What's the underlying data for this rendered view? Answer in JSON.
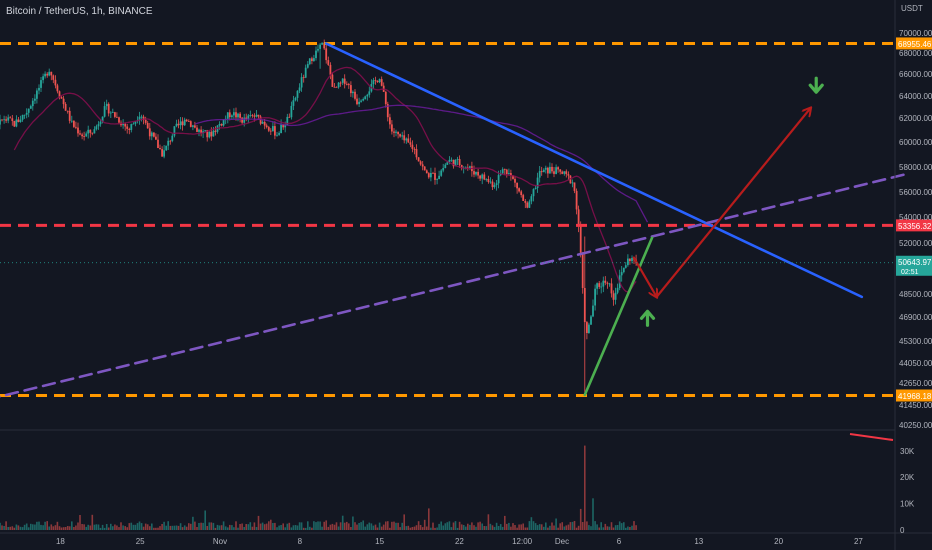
{
  "header": {
    "symbol_title": "Bitcoin / TetherUS, 1h, BINANCE",
    "currency": "USDT"
  },
  "chart_data": {
    "type": "candlestick",
    "symbol": "Bitcoin / TetherUS",
    "interval": "1h",
    "exchange": "BINANCE",
    "currency": "USDT",
    "y_range": [
      39500,
      72000
    ],
    "y_ticks": [
      70000,
      68000,
      66000,
      64000,
      62000,
      60000,
      58000,
      56000,
      54000,
      52000,
      48500,
      46900,
      45300,
      44050,
      42650,
      41450,
      40250
    ],
    "x_tick_labels": [
      "18",
      "25",
      "Nov",
      "8",
      "15",
      "22",
      "12:00",
      "Dec",
      "6",
      "13",
      "20",
      "27"
    ],
    "x_tick_positions_days": [
      -14,
      -7,
      0,
      7,
      14,
      21,
      26.5,
      30,
      35,
      42,
      49,
      56
    ],
    "price_path": [
      [
        -22,
        54500
      ],
      [
        -21,
        57500
      ],
      [
        -20,
        60500
      ],
      [
        -19,
        62000
      ],
      [
        -18,
        61500
      ],
      [
        -17,
        62500
      ],
      [
        -16,
        64500
      ],
      [
        -15,
        66500
      ],
      [
        -14,
        64000
      ],
      [
        -13,
        61500
      ],
      [
        -12,
        60500
      ],
      [
        -11,
        61000
      ],
      [
        -10,
        63000
      ],
      [
        -9,
        62000
      ],
      [
        -8,
        61000
      ],
      [
        -7,
        62500
      ],
      [
        -6,
        60500
      ],
      [
        -5,
        59000
      ],
      [
        -4,
        61000
      ],
      [
        -3,
        62000
      ],
      [
        -2,
        61000
      ],
      [
        -1,
        60500
      ],
      [
        0,
        61500
      ],
      [
        1,
        62500
      ],
      [
        2,
        61800
      ],
      [
        3,
        62200
      ],
      [
        4,
        61500
      ],
      [
        5,
        60700
      ],
      [
        6,
        62000
      ],
      [
        7,
        65000
      ],
      [
        8,
        67500
      ],
      [
        9,
        68900
      ],
      [
        10,
        64500
      ],
      [
        11,
        65500
      ],
      [
        12,
        63500
      ],
      [
        13,
        64500
      ],
      [
        14,
        65800
      ],
      [
        15,
        61000
      ],
      [
        16,
        60200
      ],
      [
        17,
        59500
      ],
      [
        18,
        57500
      ],
      [
        19,
        57200
      ],
      [
        20,
        58500
      ],
      [
        21,
        58300
      ],
      [
        22,
        57800
      ],
      [
        23,
        57200
      ],
      [
        24,
        56600
      ],
      [
        25,
        58000
      ],
      [
        26,
        56500
      ],
      [
        27,
        54500
      ],
      [
        28,
        57500
      ],
      [
        29,
        57800
      ],
      [
        30,
        57500
      ],
      [
        31,
        56800
      ],
      [
        31.5,
        53000
      ],
      [
        31.9,
        47500
      ],
      [
        32.2,
        45500
      ],
      [
        33,
        49000
      ],
      [
        34,
        49500
      ],
      [
        34.5,
        48300
      ],
      [
        35.5,
        50500
      ],
      [
        36,
        51000
      ],
      [
        36.5,
        50600
      ]
    ],
    "price_events": [
      {
        "day": 32.0,
        "high": 52500,
        "low": 42000
      },
      {
        "day": 8.8,
        "high": 69000,
        "low": 66500
      }
    ],
    "last_price": {
      "value": 50643.97,
      "label": "50643.97",
      "countdown": "02:51"
    },
    "horizontal_levels": [
      {
        "value": 68955.46,
        "label": "68955.46",
        "color": "#ff9800",
        "style": "dashed"
      },
      {
        "value": 53356.32,
        "label": "53356.32",
        "color": "#f23645",
        "style": "dashed"
      },
      {
        "value": 41968.18,
        "label": "41968.18",
        "color": "#ff9800",
        "style": "dashed"
      }
    ],
    "drawings": [
      {
        "name": "descending-trendline",
        "color": "#2962ff",
        "style": "solid",
        "from": [
          9.3,
          68950
        ],
        "to": [
          56.3,
          48300
        ]
      },
      {
        "name": "ascending-trendline",
        "color": "#7e57c2",
        "style": "dashed",
        "from": [
          -22,
          41500
        ],
        "to": [
          60.5,
          57500
        ]
      },
      {
        "name": "support-trendline",
        "color": "#4caf50",
        "style": "solid",
        "from": [
          32.0,
          42000
        ],
        "to": [
          37.9,
          52400
        ]
      },
      {
        "name": "projection-down-arrow",
        "color": "#b71c1c",
        "style": "arrow",
        "from": [
          36.3,
          51000
        ],
        "to": [
          38.3,
          48300
        ]
      },
      {
        "name": "projection-up-arrow",
        "color": "#b71c1c",
        "style": "arrow",
        "from": [
          38.3,
          48300
        ],
        "to": [
          51.8,
          62900
        ]
      }
    ],
    "markers": [
      {
        "name": "green-up-arrow",
        "day": 37.5,
        "value": 46950,
        "direction": "up",
        "color": "#4caf50"
      },
      {
        "name": "green-down-arrow",
        "day": 52.3,
        "value": 64800,
        "direction": "down",
        "color": "#4caf50"
      }
    ],
    "volume": {
      "ticks": [
        "30K",
        "20K",
        "10K",
        "0"
      ],
      "tick_values": [
        30000,
        20000,
        10000,
        0
      ],
      "range": [
        0,
        36000
      ],
      "spikes": [
        {
          "day": 32.0,
          "value": 32000
        },
        {
          "day": 32.8,
          "value": 12000
        },
        {
          "day": 31.6,
          "value": 8000
        }
      ]
    },
    "grid": false,
    "legend": "none"
  }
}
